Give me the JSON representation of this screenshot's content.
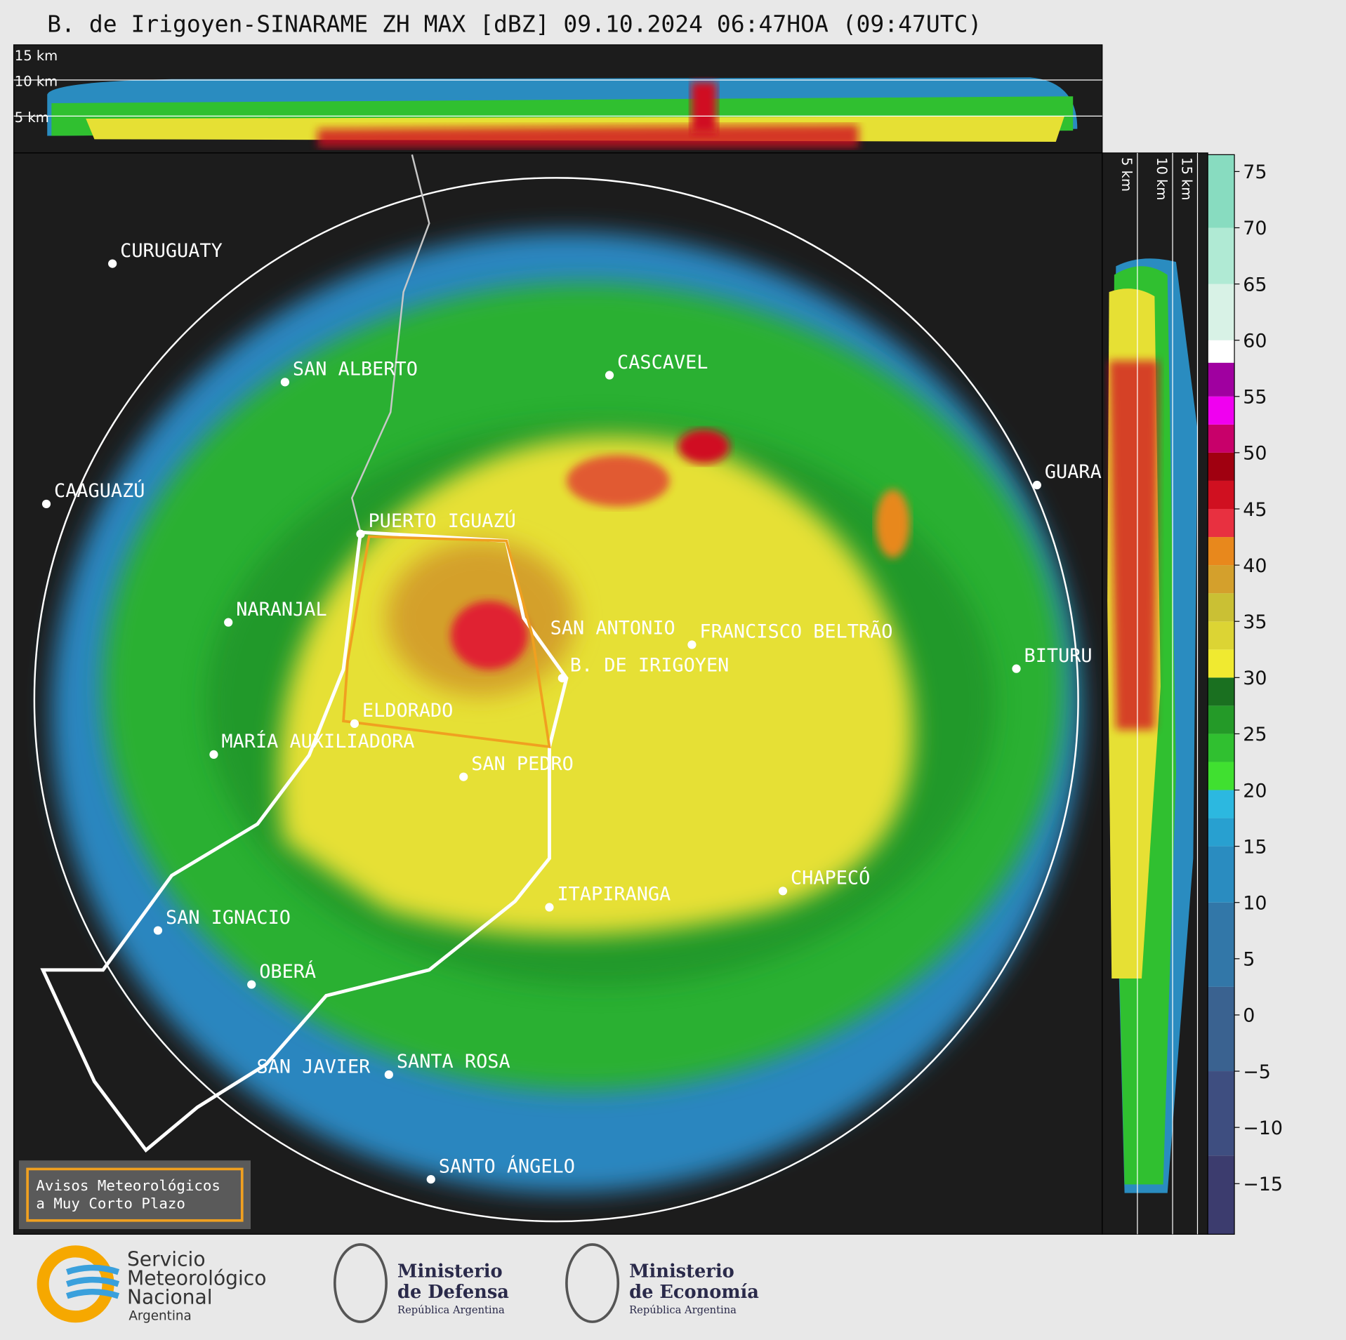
{
  "header": {
    "title": "B. de Irigoyen-SINARAME ZH MAX [dBZ] 09.10.2024 06:47HOA (09:47UTC)"
  },
  "height_labels": [
    "15 km",
    "10 km",
    "5 km"
  ],
  "cities": [
    "CURUGUATY",
    "SAN ALBERTO",
    "CASCAVEL",
    "CAAGUAZÚ",
    "GUARA",
    "PUERTO IGUAZÚ",
    "NARANJAL",
    "SAN ANTONIO",
    "FRANCISCO BELTRÃO",
    "B. DE IRIGOYEN",
    "BITURU",
    "ELDORADO",
    "MARÍA AUXILIADORA",
    "SAN PEDRO",
    "ITAPIRANGA",
    "CHAPECÓ",
    "SAN IGNACIO",
    "OBERÁ",
    "SAN JAVIER",
    "SANTA ROSA",
    "SANTO ÁNGELO"
  ],
  "colorbar": {
    "lim": [
      -19.5,
      76.5
    ],
    "ticks": [
      75,
      70,
      65,
      60,
      55,
      50,
      45,
      40,
      35,
      30,
      25,
      20,
      15,
      10,
      5,
      0,
      {
        "value": -5,
        "label": "−5"
      },
      {
        "value": -10,
        "label": "−10"
      },
      {
        "value": -15,
        "label": "−15"
      }
    ],
    "bands": [
      {
        "from": -19.5,
        "to": -12.5,
        "color": "#3c3c6e"
      },
      {
        "from": -12.5,
        "to": -5,
        "color": "#3e4e80"
      },
      {
        "from": -5,
        "to": 2.5,
        "color": "#3a6290"
      },
      {
        "from": 2.5,
        "to": 10,
        "color": "#3277a8"
      },
      {
        "from": 10,
        "to": 15,
        "color": "#2a8cc0"
      },
      {
        "from": 15,
        "to": 17.5,
        "color": "#28a0d0"
      },
      {
        "from": 17.5,
        "to": 20,
        "color": "#2cb8e0"
      },
      {
        "from": 20,
        "to": 22.5,
        "color": "#40e030"
      },
      {
        "from": 22.5,
        "to": 25,
        "color": "#30c030"
      },
      {
        "from": 25,
        "to": 27.5,
        "color": "#249a28"
      },
      {
        "from": 27.5,
        "to": 30,
        "color": "#1a7020"
      },
      {
        "from": 30,
        "to": 32.5,
        "color": "#f0ea30"
      },
      {
        "from": 32.5,
        "to": 35,
        "color": "#dcd434"
      },
      {
        "from": 35,
        "to": 37.5,
        "color": "#cac034"
      },
      {
        "from": 37.5,
        "to": 40,
        "color": "#d4a02c"
      },
      {
        "from": 40,
        "to": 42.5,
        "color": "#e8881c"
      },
      {
        "from": 42.5,
        "to": 45,
        "color": "#e83040"
      },
      {
        "from": 45,
        "to": 47.5,
        "color": "#d01020"
      },
      {
        "from": 47.5,
        "to": 50,
        "color": "#a00010"
      },
      {
        "from": 50,
        "to": 52.5,
        "color": "#c8006a"
      },
      {
        "from": 52.5,
        "to": 55,
        "color": "#f000f0"
      },
      {
        "from": 55,
        "to": 58,
        "color": "#a000a0"
      },
      {
        "from": 58,
        "to": 60,
        "color": "#ffffff"
      },
      {
        "from": 60,
        "to": 65,
        "color": "#d8f2e6"
      },
      {
        "from": 65,
        "to": 70,
        "color": "#b0ead4"
      },
      {
        "from": 70,
        "to": 76.5,
        "color": "#88dcc0"
      }
    ]
  },
  "warning": [
    "Avisos Meteorológicos",
    "a Muy Corto Plazo"
  ],
  "logos": {
    "smn": [
      "Servicio",
      "Meteorológico",
      "Nacional",
      "Argentina"
    ],
    "defensa": [
      "Ministerio",
      "de Defensa",
      "República Argentina"
    ],
    "economia": [
      "Ministerio",
      "de Economía",
      "República Argentina"
    ]
  }
}
